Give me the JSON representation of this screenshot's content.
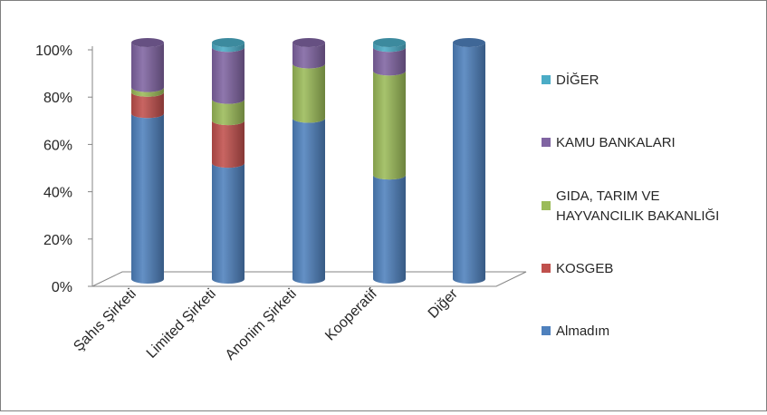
{
  "chart_data": {
    "type": "bar",
    "stacked": "percent",
    "style": "3d-cylinder",
    "categories": [
      "Şahıs Şirketi",
      "Limited Şirketi",
      "Anonim Şirketi",
      "Kooperatif",
      "Diğer"
    ],
    "yticks": [
      "0%",
      "20%",
      "40%",
      "60%",
      "80%",
      "100%"
    ],
    "ylim": [
      0,
      100
    ],
    "legend_position": "right",
    "series": [
      {
        "name": "Almadım",
        "color": "#4F81BD",
        "values": [
          70,
          49,
          68,
          44,
          100
        ]
      },
      {
        "name": "KOSGEB",
        "color": "#C0504D",
        "values": [
          9,
          18,
          0,
          0,
          0
        ]
      },
      {
        "name": "GIDA, TARIM VE HAYVANCILIK BAKANLIĞI",
        "color": "#9BBB59",
        "values": [
          2,
          9,
          23,
          44,
          0
        ]
      },
      {
        "name": "KAMU BANKALARI",
        "color": "#8064A2",
        "values": [
          19,
          22,
          9,
          10,
          0
        ]
      },
      {
        "name": "DİĞER",
        "color": "#4BACC6",
        "values": [
          0,
          2,
          0,
          2,
          0
        ]
      }
    ],
    "legend_order": [
      "DİĞER",
      "KAMU BANKALARI",
      "GIDA, TARIM VE HAYVANCILIK BAKANLIĞI",
      "KOSGEB",
      "Almadım"
    ]
  }
}
